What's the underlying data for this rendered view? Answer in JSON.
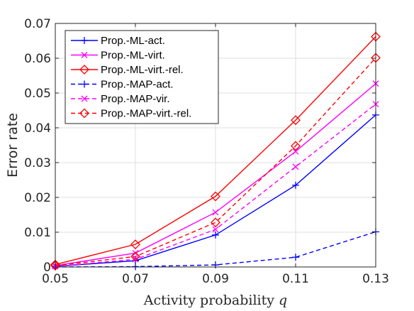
{
  "chart_data": {
    "type": "line",
    "title": "",
    "xlabel": "Activity probability",
    "xlabel_symbol": "q",
    "ylabel": "Error rate",
    "x": [
      0.05,
      0.07,
      0.09,
      0.11,
      0.13
    ],
    "xlim": [
      0.05,
      0.13
    ],
    "ylim": [
      0,
      0.07
    ],
    "x_ticks": [
      "0.05",
      "0.07",
      "0.09",
      "0.11",
      "0.13"
    ],
    "y_ticks": [
      "0",
      "0.01",
      "0.02",
      "0.03",
      "0.04",
      "0.05",
      "0.06",
      "0.07"
    ],
    "grid": true,
    "legend_position": "top-left",
    "series": [
      {
        "name": "Prop.-ML-act.",
        "color": "#0000ff",
        "dash": "solid",
        "marker": "plus",
        "values": [
          0.0002,
          0.0018,
          0.0092,
          0.0235,
          0.0437
        ]
      },
      {
        "name": "Prop.-ML-virt.",
        "color": "#ff00ff",
        "dash": "solid",
        "marker": "x",
        "values": [
          0.0004,
          0.004,
          0.0157,
          0.0332,
          0.0527
        ]
      },
      {
        "name": "Prop.-ML-virt.-rel.",
        "color": "#ff0000",
        "dash": "solid",
        "marker": "diamond",
        "values": [
          0.0007,
          0.0065,
          0.0203,
          0.0422,
          0.0662
        ]
      },
      {
        "name": "Prop.-MAP-act.",
        "color": "#0000ff",
        "dash": "dashed",
        "marker": "plus",
        "values": [
          0.0,
          0.0001,
          0.0006,
          0.0028,
          0.0101
        ]
      },
      {
        "name": "Prop.-MAP-vir.",
        "color": "#ff00ff",
        "dash": "dashed",
        "marker": "x",
        "values": [
          0.0002,
          0.0022,
          0.0108,
          0.0288,
          0.0468
        ]
      },
      {
        "name": "Prop.-MAP-virt.-rel.",
        "color": "#ff0000",
        "dash": "dashed",
        "marker": "diamond",
        "values": [
          0.0004,
          0.003,
          0.0128,
          0.0348,
          0.0601
        ]
      }
    ]
  }
}
